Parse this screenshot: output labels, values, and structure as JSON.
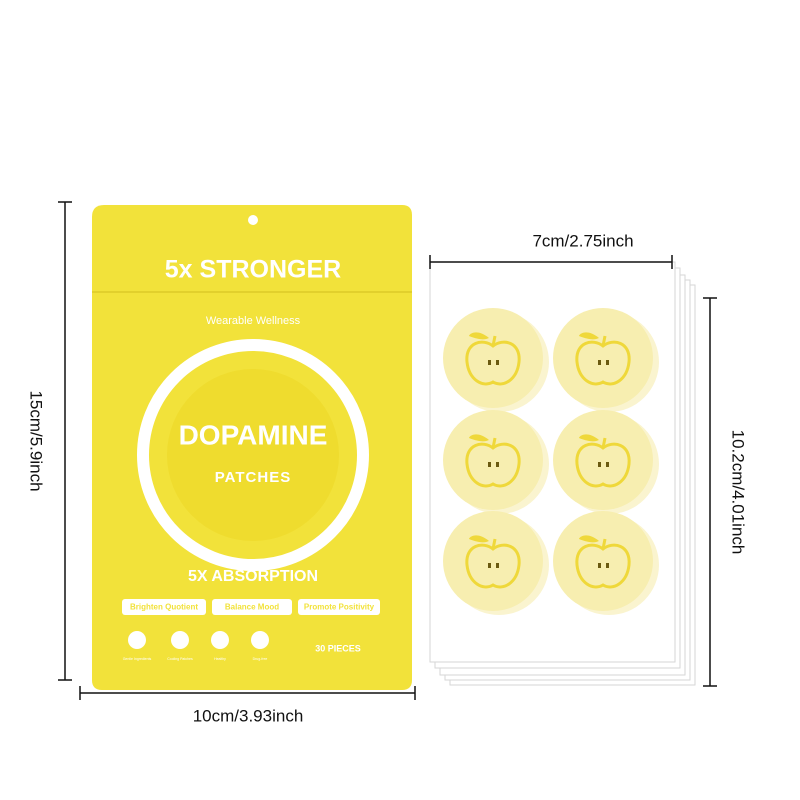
{
  "dimensions": {
    "height": "15cm/5.9inch",
    "width": "10cm/3.93inch",
    "sheet_width": "7cm/2.75inch",
    "sheet_height": "10.2cm/4.01inch"
  },
  "package": {
    "headline": "5x STRONGER",
    "tagline": "Wearable Wellness",
    "product_name": "DOPAMINE",
    "product_type": "PATCHES",
    "claim": "5X ABSORPTION",
    "benefits": [
      "Brighten Quotient",
      "Balance Mood",
      "Promote Positivity"
    ],
    "features": [
      "Gentle Ingredients",
      "Cooling Patches",
      "Healthy",
      "Drug-free"
    ],
    "count": "30 PIECES"
  }
}
